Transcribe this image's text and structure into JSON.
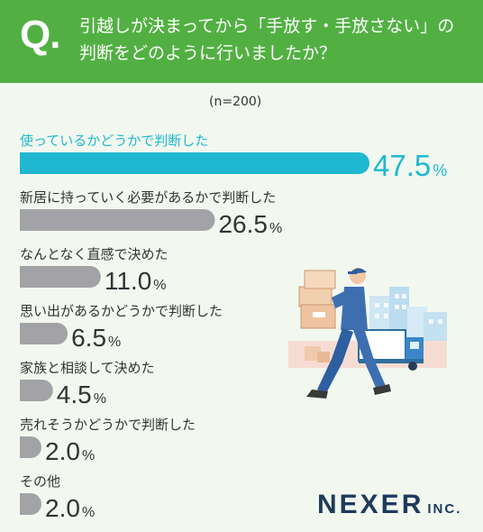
{
  "header": {
    "q_mark": "Q.",
    "question_line1": "引越しが決まってから「手放す・手放さない」の",
    "question_line2": "判断をどのように行いましたか？"
  },
  "sample_size": "(n=200)",
  "chart_data": {
    "type": "bar",
    "orientation": "horizontal",
    "unit": "%",
    "categories": [
      "使っているかどうかで判断した",
      "新居に持っていく必要があるかで判断した",
      "なんとなく直感で決めた",
      "思い出があるかどうかで判断した",
      "家族と相談して決めた",
      "売れそうかどうかで判断した",
      "その他"
    ],
    "values": [
      47.5,
      26.5,
      11.0,
      6.5,
      4.5,
      2.0,
      2.0
    ],
    "value_labels": [
      "47.5",
      "26.5",
      "11.0",
      "6.5",
      "4.5",
      "2.0",
      "2.0"
    ],
    "highlight_color": "#1fb8d0",
    "bar_color": "#a3a3a7",
    "highlight_index": 0
  },
  "logo": {
    "main": "NEXER",
    "sub": "INC."
  }
}
